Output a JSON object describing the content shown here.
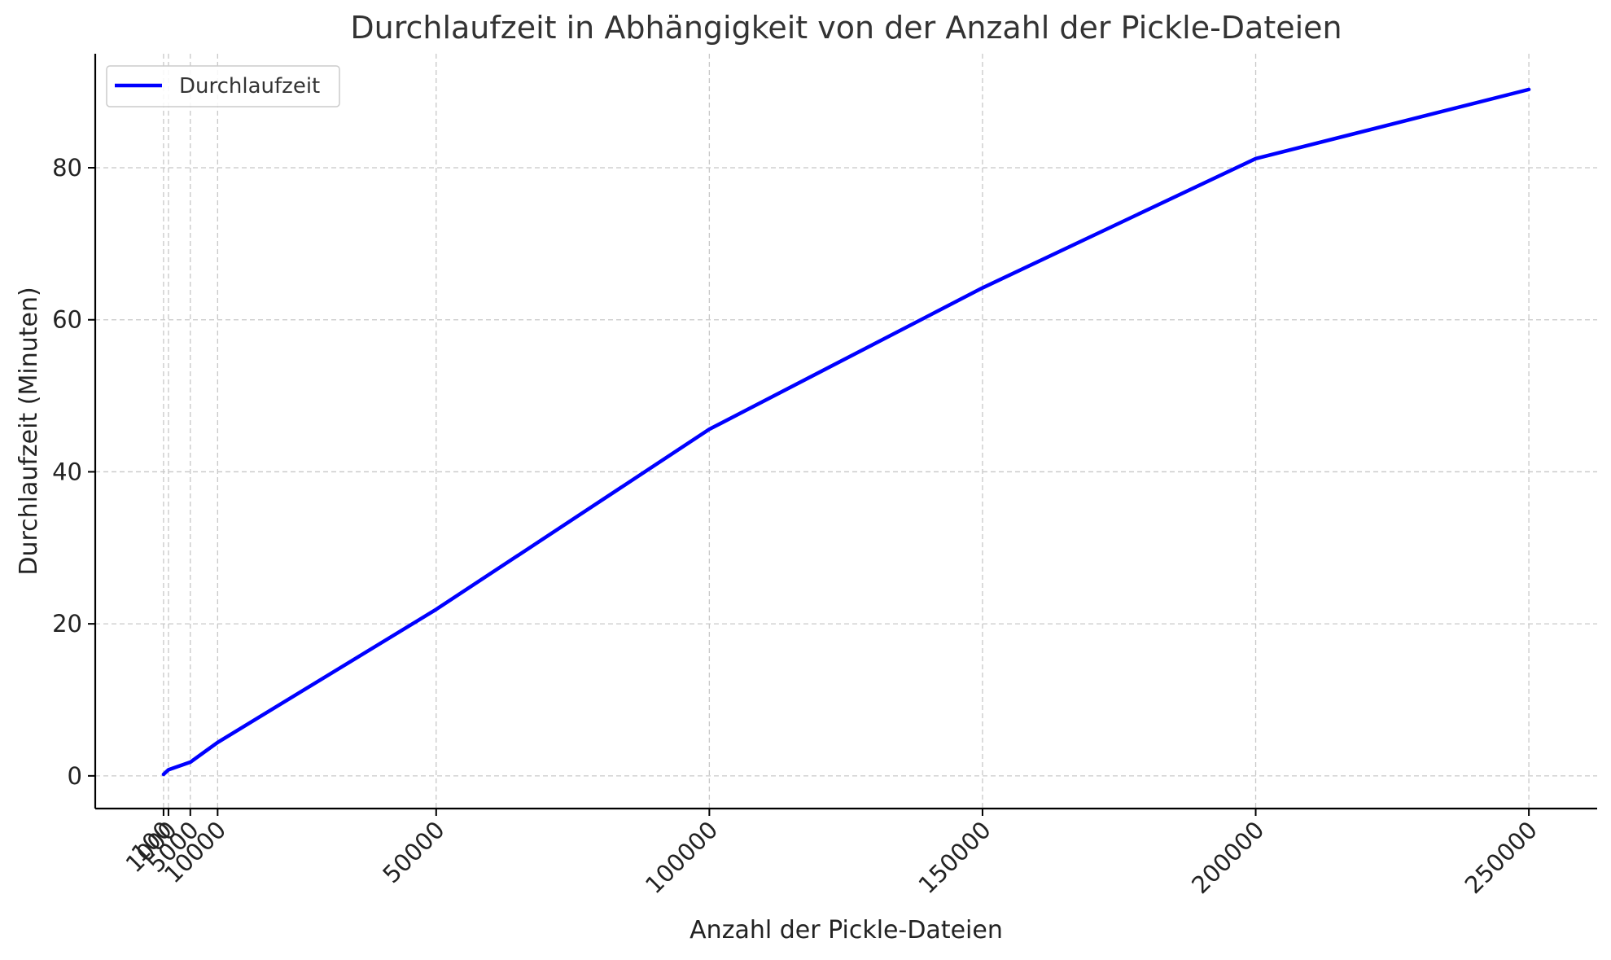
{
  "chart_data": {
    "type": "line",
    "title": "Durchlaufzeit in Abhängigkeit von der Anzahl der Pickle-Dateien",
    "xlabel": "Anzahl der Pickle-Dateien",
    "ylabel": "Durchlaufzeit (Minuten)",
    "x": [
      100,
      1000,
      5000,
      10000,
      50000,
      100000,
      150000,
      200000,
      250000
    ],
    "x_tick_labels": [
      "100",
      "1000",
      "5000",
      "10000",
      "50000",
      "100000",
      "150000",
      "200000",
      "250000"
    ],
    "series": [
      {
        "name": "Durchlaufzeit",
        "color": "#0000ff",
        "values": [
          0.2,
          0.8,
          1.8,
          4.4,
          21.9,
          45.6,
          64.2,
          81.2,
          90.3
        ]
      }
    ],
    "xlim": [
      -12400,
      262500
    ],
    "ylim": [
      -4.3,
      95.0
    ],
    "y_ticks": [
      0,
      20,
      40,
      60,
      80
    ],
    "grid": true,
    "legend_position": "top-left"
  }
}
